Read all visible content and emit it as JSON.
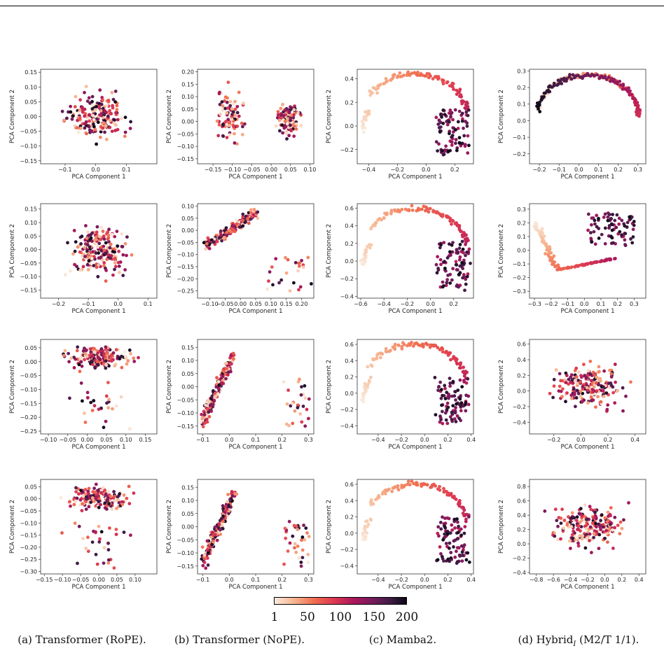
{
  "figure": {
    "axis_x_label": "PCA Component 1",
    "axis_y_label": "PCA Component 2",
    "colorbar": {
      "ticks": [
        "1",
        "50",
        "100",
        "150",
        "200"
      ],
      "range": [
        1,
        200
      ]
    },
    "captions": [
      {
        "text": "(a) Transformer (RoPE)."
      },
      {
        "text": "(b) Transformer (NoPE)."
      },
      {
        "text": "(c) Mamba2."
      },
      {
        "pre": "(d) Hybrid",
        "sub": "I",
        "post": " (M2/T 1/1)."
      }
    ]
  },
  "chart_data": [
    {
      "type": "scatter",
      "col": 0,
      "row": 0,
      "shape": "blob",
      "xlim": [
        -0.18,
        0.2
      ],
      "ylim": [
        -0.16,
        0.16
      ],
      "xticks": [
        -0.1,
        0.0,
        0.1
      ],
      "yticks": [
        -0.15,
        -0.1,
        -0.05,
        0.0,
        0.05,
        0.1,
        0.15
      ],
      "color_by": "token_index",
      "n_points": 200
    },
    {
      "type": "scatter",
      "col": 1,
      "row": 0,
      "shape": "two-clusters",
      "xlim": [
        -0.19,
        0.11
      ],
      "ylim": [
        -0.17,
        0.21
      ],
      "xticks": [
        -0.15,
        -0.1,
        -0.05,
        0.0,
        0.05,
        0.1
      ],
      "yticks": [
        -0.15,
        -0.1,
        -0.05,
        0.0,
        0.05,
        0.1,
        0.15,
        0.2
      ],
      "color_by": "token_index",
      "n_points": 200
    },
    {
      "type": "scatter",
      "col": 2,
      "row": 0,
      "shape": "arc",
      "xlim": [
        -0.48,
        0.33
      ],
      "ylim": [
        -0.32,
        0.48
      ],
      "xticks": [
        -0.4,
        -0.2,
        0.0,
        0.2
      ],
      "yticks": [
        -0.2,
        0.0,
        0.2,
        0.4
      ],
      "color_by": "token_index",
      "n_points": 200
    },
    {
      "type": "scatter",
      "col": 3,
      "row": 0,
      "shape": "loop",
      "xlim": [
        -0.25,
        0.34
      ],
      "ylim": [
        -0.26,
        0.31
      ],
      "xticks": [
        -0.2,
        -0.1,
        0.0,
        0.1,
        0.2,
        0.3
      ],
      "yticks": [
        -0.2,
        -0.1,
        0.0,
        0.1,
        0.2,
        0.3
      ],
      "color_by": "token_index",
      "n_points": 200
    },
    {
      "type": "scatter",
      "col": 0,
      "row": 1,
      "shape": "blob",
      "xlim": [
        -0.26,
        0.13
      ],
      "ylim": [
        -0.18,
        0.17
      ],
      "xticks": [
        -0.2,
        -0.1,
        0.0,
        0.1
      ],
      "yticks": [
        -0.15,
        -0.1,
        -0.05,
        0.0,
        0.05,
        0.1,
        0.15
      ],
      "color_by": "token_index",
      "n_points": 200
    },
    {
      "type": "scatter",
      "col": 1,
      "row": 1,
      "shape": "diagonal",
      "xlim": [
        -0.14,
        0.24
      ],
      "ylim": [
        -0.28,
        0.11
      ],
      "xticks": [
        -0.1,
        -0.05,
        0.0,
        0.05,
        0.1,
        0.15,
        0.2
      ],
      "yticks": [
        -0.25,
        -0.2,
        -0.15,
        -0.1,
        -0.05,
        0.0,
        0.05,
        0.1
      ],
      "color_by": "token_index",
      "n_points": 200
    },
    {
      "type": "scatter",
      "col": 2,
      "row": 1,
      "shape": "arc",
      "xlim": [
        -0.63,
        0.37
      ],
      "ylim": [
        -0.42,
        0.65
      ],
      "xticks": [
        -0.6,
        -0.4,
        -0.2,
        0.0,
        0.2
      ],
      "yticks": [
        -0.4,
        -0.2,
        0.0,
        0.2,
        0.4,
        0.6
      ],
      "color_by": "token_index",
      "n_points": 200
    },
    {
      "type": "scatter",
      "col": 3,
      "row": 1,
      "shape": "zigzag",
      "xlim": [
        -0.33,
        0.37
      ],
      "ylim": [
        -0.35,
        0.34
      ],
      "xticks": [
        -0.3,
        -0.2,
        -0.1,
        0.0,
        0.1,
        0.2,
        0.3
      ],
      "yticks": [
        -0.3,
        -0.2,
        -0.1,
        0.0,
        0.1,
        0.2,
        0.3
      ],
      "color_by": "token_index",
      "n_points": 200
    },
    {
      "type": "scatter",
      "col": 0,
      "row": 2,
      "shape": "band",
      "xlim": [
        -0.12,
        0.18
      ],
      "ylim": [
        -0.26,
        0.08
      ],
      "xticks": [
        -0.1,
        -0.05,
        0.0,
        0.05,
        0.1,
        0.15
      ],
      "yticks": [
        -0.25,
        -0.2,
        -0.15,
        -0.1,
        -0.05,
        0.0,
        0.05
      ],
      "color_by": "token_index",
      "n_points": 200
    },
    {
      "type": "scatter",
      "col": 1,
      "row": 2,
      "shape": "steep-cluster",
      "xlim": [
        -0.12,
        0.32
      ],
      "ylim": [
        -0.18,
        0.18
      ],
      "xticks": [
        -0.1,
        0.0,
        0.1,
        0.2,
        0.3
      ],
      "yticks": [
        -0.15,
        -0.1,
        -0.05,
        0.0,
        0.05,
        0.1,
        0.15
      ],
      "color_by": "token_index",
      "n_points": 200
    },
    {
      "type": "scatter",
      "col": 2,
      "row": 2,
      "shape": "arc",
      "xlim": [
        -0.58,
        0.42
      ],
      "ylim": [
        -0.5,
        0.66
      ],
      "xticks": [
        -0.4,
        -0.2,
        0.0,
        0.2,
        0.4
      ],
      "yticks": [
        -0.4,
        -0.2,
        0.0,
        0.2,
        0.4,
        0.6
      ],
      "color_by": "token_index",
      "n_points": 200
    },
    {
      "type": "scatter",
      "col": 3,
      "row": 2,
      "shape": "spread",
      "xlim": [
        -0.38,
        0.48
      ],
      "ylim": [
        -0.55,
        0.66
      ],
      "xticks": [
        -0.2,
        0.0,
        0.2,
        0.4
      ],
      "yticks": [
        -0.4,
        -0.2,
        0.0,
        0.2,
        0.4,
        0.6
      ],
      "color_by": "token_index",
      "n_points": 200
    },
    {
      "type": "scatter",
      "col": 0,
      "row": 3,
      "shape": "band",
      "xlim": [
        -0.16,
        0.16
      ],
      "ylim": [
        -0.31,
        0.08
      ],
      "xticks": [
        -0.15,
        -0.1,
        -0.05,
        0.0,
        0.05,
        0.1
      ],
      "yticks": [
        -0.3,
        -0.25,
        -0.2,
        -0.15,
        -0.1,
        -0.05,
        0.0,
        0.05
      ],
      "color_by": "token_index",
      "n_points": 200
    },
    {
      "type": "scatter",
      "col": 1,
      "row": 3,
      "shape": "steep-cluster",
      "xlim": [
        -0.12,
        0.32
      ],
      "ylim": [
        -0.18,
        0.18
      ],
      "xticks": [
        -0.1,
        0.0,
        0.1,
        0.2,
        0.3
      ],
      "yticks": [
        -0.15,
        -0.1,
        -0.05,
        0.0,
        0.05,
        0.1,
        0.15
      ],
      "color_by": "token_index",
      "n_points": 200
    },
    {
      "type": "scatter",
      "col": 2,
      "row": 3,
      "shape": "arc",
      "xlim": [
        -0.58,
        0.42
      ],
      "ylim": [
        -0.5,
        0.66
      ],
      "xticks": [
        -0.4,
        -0.2,
        0.0,
        0.2,
        0.4
      ],
      "yticks": [
        -0.4,
        -0.2,
        0.0,
        0.2,
        0.4,
        0.6
      ],
      "color_by": "token_index",
      "n_points": 200
    },
    {
      "type": "scatter",
      "col": 3,
      "row": 3,
      "shape": "spread",
      "xlim": [
        -0.88,
        0.48
      ],
      "ylim": [
        -0.42,
        0.9
      ],
      "xticks": [
        -0.8,
        -0.6,
        -0.4,
        -0.2,
        0.0,
        0.2,
        0.4
      ],
      "yticks": [
        -0.4,
        -0.2,
        0.0,
        0.2,
        0.4,
        0.6,
        0.8
      ],
      "color_by": "token_index",
      "n_points": 200
    }
  ]
}
